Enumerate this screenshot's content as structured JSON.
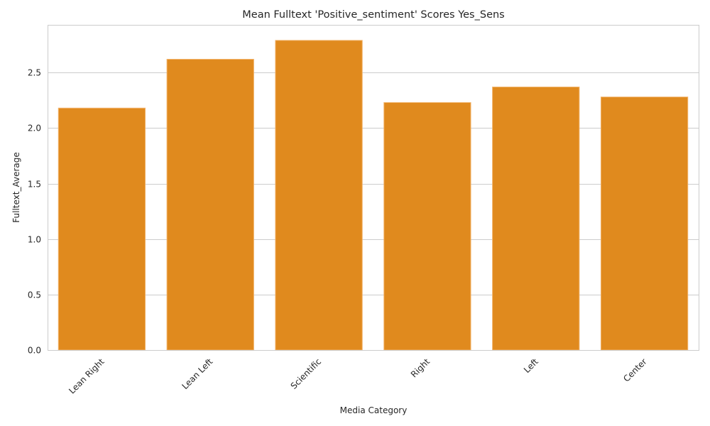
{
  "chart_data": {
    "type": "bar",
    "title": "Mean Fulltext 'Positive_sentiment' Scores Yes_Sens",
    "xlabel": "Media Category",
    "ylabel": "Fulltext_Average",
    "categories": [
      "Lean Right",
      "Lean Left",
      "Scientific",
      "Right",
      "Left",
      "Center"
    ],
    "values": [
      2.18,
      2.62,
      2.79,
      2.23,
      2.37,
      2.28
    ],
    "ylim": [
      0,
      2.93
    ],
    "yticks": [
      0.0,
      0.5,
      1.0,
      1.5,
      2.0,
      2.5
    ],
    "ytick_labels": [
      "0.0",
      "0.5",
      "1.0",
      "1.5",
      "2.0",
      "2.5"
    ],
    "grid": "horizontal",
    "legend": "none",
    "bar_color": "#e08a1e",
    "bar_edge_color": "#f2b36a"
  }
}
